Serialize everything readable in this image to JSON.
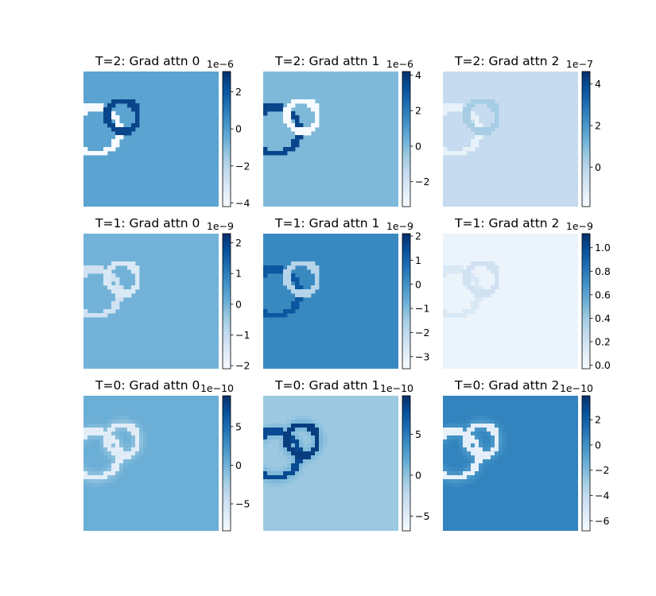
{
  "chart_data": [
    {
      "type": "heatmap",
      "title": "T=2: Grad attn 0",
      "colormap": "Blues",
      "grid": false,
      "colorbar": {
        "ticks": [
          -4,
          -2,
          0,
          2
        ],
        "tick_labels": [
          "−4",
          "−2",
          "0",
          "2"
        ],
        "range": [
          -4.2,
          3.1
        ],
        "multiplier": "1e−6"
      },
      "background_level": 0.55,
      "shape_levels": {
        "small_circle": 0.92,
        "large_circle": 0.0
      }
    },
    {
      "type": "heatmap",
      "title": "T=2: Grad attn 1",
      "colormap": "Blues",
      "grid": false,
      "colorbar": {
        "ticks": [
          -2,
          0,
          2,
          4
        ],
        "tick_labels": [
          "−2",
          "0",
          "2",
          "4"
        ],
        "range": [
          -3.4,
          4.2
        ],
        "multiplier": "1e−6"
      },
      "background_level": 0.45,
      "shape_levels": {
        "small_circle": 0.0,
        "large_circle": 0.92
      }
    },
    {
      "type": "heatmap",
      "title": "T=2: Grad attn 2",
      "colormap": "Blues",
      "grid": false,
      "colorbar": {
        "ticks": [
          0,
          2,
          4
        ],
        "tick_labels": [
          "0",
          "2",
          "4"
        ],
        "range": [
          -1.9,
          4.6
        ],
        "multiplier": "1e−7"
      },
      "background_level": 0.25,
      "shape_levels": {
        "small_circle": 0.35,
        "large_circle": 0.08
      }
    },
    {
      "type": "heatmap",
      "title": "T=1: Grad attn 0",
      "colormap": "Blues",
      "grid": false,
      "colorbar": {
        "ticks": [
          -2,
          -1,
          0,
          1,
          2
        ],
        "tick_labels": [
          "−2",
          "−1",
          "0",
          "1",
          "2"
        ],
        "range": [
          -2.1,
          2.3
        ],
        "multiplier": "1e−9"
      },
      "background_level": 0.48,
      "shape_levels": {
        "small_circle": 0.15,
        "large_circle": 0.2
      }
    },
    {
      "type": "heatmap",
      "title": "T=1: Grad attn 1",
      "colormap": "Blues",
      "grid": false,
      "colorbar": {
        "ticks": [
          -3,
          -2,
          -1,
          0,
          1,
          2
        ],
        "tick_labels": [
          "−3",
          "−2",
          "−1",
          "0",
          "1",
          "2"
        ],
        "range": [
          -3.5,
          2.1
        ],
        "multiplier": "1e−9"
      },
      "background_level": 0.66,
      "shape_levels": {
        "small_circle": 0.3,
        "large_circle": 0.85
      }
    },
    {
      "type": "heatmap",
      "title": "T=1: Grad attn 2",
      "colormap": "Blues",
      "grid": false,
      "colorbar": {
        "ticks": [
          0.0,
          0.2,
          0.4,
          0.6,
          0.8,
          1.0
        ],
        "tick_labels": [
          "0.0",
          "0.2",
          "0.4",
          "0.6",
          "0.8",
          "1.0"
        ],
        "range": [
          -0.03,
          1.12
        ],
        "multiplier": "1e−9"
      },
      "background_level": 0.06,
      "shape_levels": {
        "small_circle": 0.2,
        "large_circle": 0.15
      }
    },
    {
      "type": "heatmap",
      "title": "T=0: Grad attn 0",
      "colormap": "Blues",
      "grid": false,
      "colorbar": {
        "ticks": [
          -5,
          0,
          5
        ],
        "tick_labels": [
          "−5",
          "0",
          "5"
        ],
        "range": [
          -8.5,
          9.0
        ],
        "multiplier": "1e−10"
      },
      "background_level": 0.5,
      "shape_levels": {
        "small_circle": 0.12,
        "large_circle": 0.1
      }
    },
    {
      "type": "heatmap",
      "title": "T=0: Grad attn 1",
      "colormap": "Blues",
      "grid": false,
      "colorbar": {
        "ticks": [
          -5,
          0,
          5
        ],
        "tick_labels": [
          "−5",
          "0",
          "5"
        ],
        "range": [
          -6.8,
          9.7
        ],
        "multiplier": "1e−10"
      },
      "background_level": 0.38,
      "shape_levels": {
        "small_circle": 0.95,
        "large_circle": 0.9
      }
    },
    {
      "type": "heatmap",
      "title": "T=0: Grad attn 2",
      "colormap": "Blues",
      "grid": false,
      "colorbar": {
        "ticks": [
          -6,
          -4,
          -2,
          0,
          2
        ],
        "tick_labels": [
          "−6",
          "−4",
          "−2",
          "0",
          "2"
        ],
        "range": [
          -6.8,
          3.9
        ],
        "multiplier": "1e−10"
      },
      "background_level": 0.68,
      "shape_levels": {
        "small_circle": 0.1,
        "large_circle": 0.08
      }
    }
  ]
}
